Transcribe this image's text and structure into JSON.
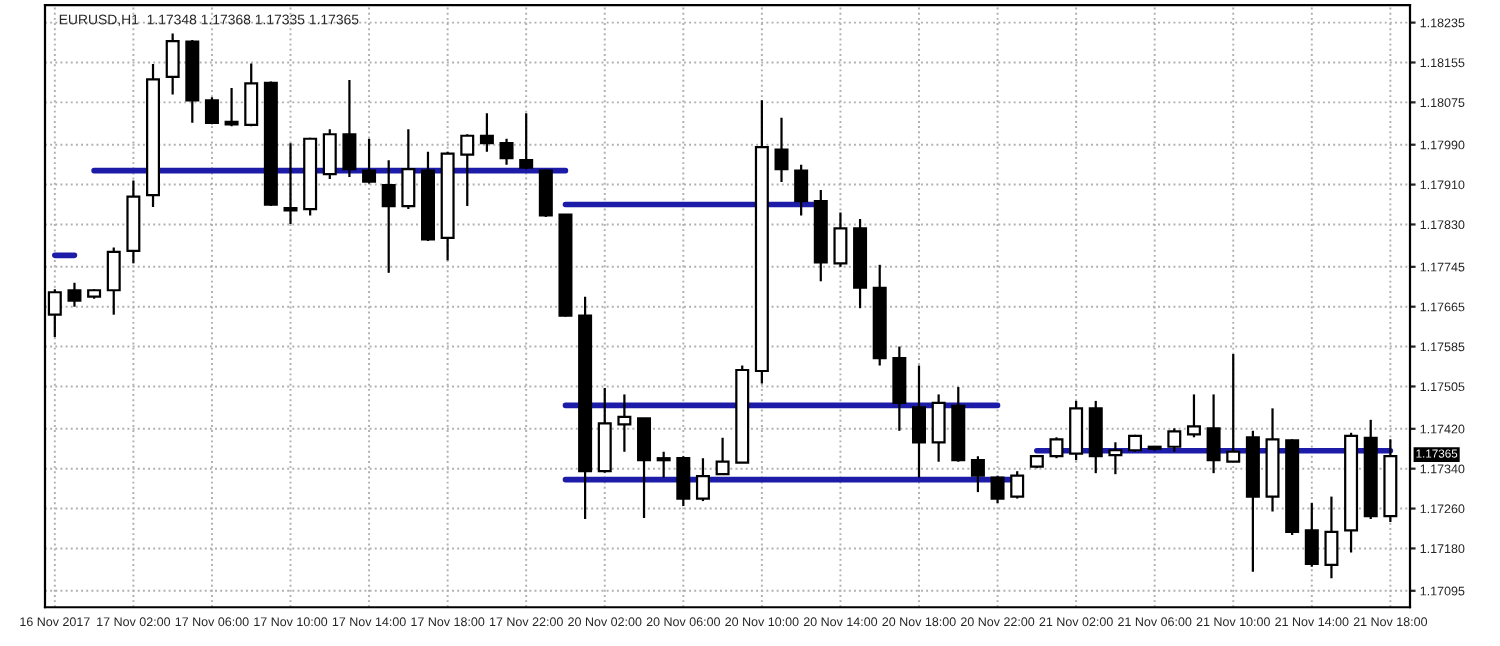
{
  "chart_data": {
    "type": "candlestick",
    "title": "EURUSD,H1  1.17348 1.17368 1.17335 1.17365",
    "categories": [
      "16 Nov 2017",
      null,
      null,
      null,
      "17 Nov 02:00",
      null,
      null,
      null,
      "17 Nov 06:00",
      null,
      null,
      null,
      "17 Nov 10:00",
      null,
      null,
      null,
      "17 Nov 14:00",
      null,
      null,
      null,
      "17 Nov 18:00",
      null,
      null,
      null,
      "17 Nov 22:00",
      null,
      null,
      null,
      "20 Nov 02:00",
      null,
      null,
      null,
      "20 Nov 06:00",
      null,
      null,
      null,
      "20 Nov 10:00",
      null,
      null,
      null,
      "20 Nov 14:00",
      null,
      null,
      null,
      "20 Nov 18:00",
      null,
      null,
      null,
      "20 Nov 22:00",
      null,
      null,
      null,
      "21 Nov 02:00",
      null,
      null,
      null,
      "21 Nov 06:00",
      null,
      null,
      null,
      "21 Nov 10:00",
      null,
      null,
      null,
      "21 Nov 14:00",
      null,
      null,
      null,
      "21 Nov 18:00"
    ],
    "ohlc": [
      [
        1.17649,
        1.177,
        1.17604,
        1.17694
      ],
      [
        1.17698,
        1.17713,
        1.17665,
        1.17677
      ],
      [
        1.17685,
        1.177,
        1.17681,
        1.17698
      ],
      [
        1.17698,
        1.17784,
        1.17649,
        1.17775
      ],
      [
        1.17777,
        1.17918,
        1.17752,
        1.17886
      ],
      [
        1.17889,
        1.18152,
        1.17865,
        1.18121
      ],
      [
        1.18126,
        1.18213,
        1.18091,
        1.18198
      ],
      [
        1.18197,
        1.182,
        1.18034,
        1.18079
      ],
      [
        1.18079,
        1.18085,
        1.18031,
        1.18034
      ],
      [
        1.18036,
        1.18104,
        1.18027,
        1.18031
      ],
      [
        1.1803,
        1.18153,
        1.18027,
        1.18113
      ],
      [
        1.18114,
        1.18117,
        1.17867,
        1.1787
      ],
      [
        1.17863,
        1.17993,
        1.17831,
        1.17858
      ],
      [
        1.17861,
        1.18004,
        1.17848,
        1.18002
      ],
      [
        1.17931,
        1.18021,
        1.17921,
        1.18011
      ],
      [
        1.18011,
        1.1812,
        1.17925,
        1.17941
      ],
      [
        1.17938,
        1.18002,
        1.17912,
        1.17916
      ],
      [
        1.17909,
        1.17959,
        1.17733,
        1.17867
      ],
      [
        1.17867,
        1.18021,
        1.17861,
        1.17941
      ],
      [
        1.17938,
        1.17976,
        1.17797,
        1.178
      ],
      [
        1.17803,
        1.17976,
        1.17758,
        1.17972
      ],
      [
        1.1797,
        1.18011,
        1.17867,
        1.18008
      ],
      [
        1.18008,
        1.18053,
        1.17976,
        1.17993
      ],
      [
        1.17993,
        1.18002,
        1.1795,
        1.17963
      ],
      [
        1.17959,
        1.18053,
        1.17941,
        1.17944
      ],
      [
        1.17938,
        1.1794,
        1.17845,
        1.17848
      ],
      [
        1.1785,
        1.1785,
        1.17645,
        1.17647
      ],
      [
        1.17647,
        1.17685,
        1.17239,
        1.17335
      ],
      [
        1.17335,
        1.17502,
        1.17332,
        1.17431
      ],
      [
        1.17429,
        1.17489,
        1.17374,
        1.17444
      ],
      [
        1.17441,
        1.17441,
        1.17241,
        1.17357
      ],
      [
        1.17357,
        1.17374,
        1.17322,
        1.17361
      ],
      [
        1.17361,
        1.17365,
        1.17265,
        1.1728
      ],
      [
        1.1728,
        1.17361,
        1.17275,
        1.17325
      ],
      [
        1.17329,
        1.17402,
        1.17329,
        1.17354
      ],
      [
        1.17352,
        1.17547,
        1.17352,
        1.17538
      ],
      [
        1.17536,
        1.18079,
        1.17511,
        1.17985
      ],
      [
        1.1798,
        1.18044,
        1.17915,
        1.17941
      ],
      [
        1.17938,
        1.1795,
        1.17848,
        1.17877
      ],
      [
        1.17877,
        1.17899,
        1.17716,
        1.17754
      ],
      [
        1.17752,
        1.17854,
        1.17745,
        1.17822
      ],
      [
        1.17822,
        1.17841,
        1.17662,
        1.17703
      ],
      [
        1.17703,
        1.17749,
        1.17547,
        1.17562
      ],
      [
        1.17562,
        1.17585,
        1.17416,
        1.17472
      ],
      [
        1.17463,
        1.17547,
        1.17322,
        1.17393
      ],
      [
        1.17393,
        1.17489,
        1.17354,
        1.17472
      ],
      [
        1.17466,
        1.17504,
        1.17354,
        1.17357
      ],
      [
        1.17357,
        1.17365,
        1.17293,
        1.17326
      ],
      [
        1.17322,
        1.17326,
        1.17271,
        1.1728
      ],
      [
        1.17284,
        1.17335,
        1.1728,
        1.17326
      ],
      [
        1.17344,
        1.17367,
        1.17341,
        1.17365
      ],
      [
        1.17365,
        1.17403,
        1.17361,
        1.17399
      ],
      [
        1.1737,
        1.17476,
        1.17357,
        1.17461
      ],
      [
        1.17461,
        1.17476,
        1.17331,
        1.17365
      ],
      [
        1.17367,
        1.17393,
        1.17329,
        1.17377
      ],
      [
        1.17377,
        1.17408,
        1.17374,
        1.17406
      ],
      [
        1.1738,
        1.17384,
        1.17376,
        1.17384
      ],
      [
        1.17384,
        1.17421,
        1.17374,
        1.17415
      ],
      [
        1.17409,
        1.17489,
        1.17403,
        1.17425
      ],
      [
        1.17421,
        1.17489,
        1.17331,
        1.17357
      ],
      [
        1.17354,
        1.1757,
        1.17354,
        1.17374
      ],
      [
        1.17403,
        1.17416,
        1.17133,
        1.17284
      ],
      [
        1.17284,
        1.17461,
        1.17254,
        1.17399
      ],
      [
        1.17397,
        1.17399,
        1.17207,
        1.17213
      ],
      [
        1.17216,
        1.17271,
        1.17143,
        1.17149
      ],
      [
        1.17147,
        1.17284,
        1.1712,
        1.17213
      ],
      [
        1.17216,
        1.17412,
        1.17172,
        1.17406
      ],
      [
        1.17402,
        1.17438,
        1.17239,
        1.17245
      ],
      [
        1.17245,
        1.17399,
        1.17233,
        1.17365
      ]
    ],
    "series": [
      {
        "type": "line",
        "color": "#1c1ca8",
        "values": [
          1.17768,
          1.17768,
          null,
          null,
          null,
          null,
          null,
          null,
          null,
          null,
          null,
          null,
          null,
          null,
          null,
          null,
          null,
          null,
          null,
          null,
          null,
          null,
          null,
          null,
          null,
          null,
          null,
          null,
          null,
          null,
          null,
          null,
          null,
          null,
          null,
          null,
          null,
          null,
          null,
          null,
          null,
          null,
          null,
          null,
          null,
          null,
          null,
          null,
          null,
          null,
          null,
          null,
          null,
          null,
          null,
          null,
          null,
          null,
          null,
          null,
          null,
          null,
          null,
          null,
          null,
          null,
          null,
          null,
          null
        ]
      },
      {
        "type": "line",
        "color": "#1c1ca8",
        "values": [
          null,
          null,
          1.17938,
          1.17938,
          1.17938,
          1.17938,
          1.17938,
          1.17938,
          1.17938,
          1.17938,
          1.17938,
          1.17938,
          1.17938,
          1.17938,
          1.17938,
          1.17938,
          1.17938,
          1.17938,
          1.17938,
          1.17938,
          1.17938,
          1.17938,
          1.17938,
          1.17938,
          1.17938,
          1.17938,
          1.17938,
          null,
          null,
          null,
          null,
          null,
          null,
          null,
          null,
          null,
          null,
          null,
          null,
          null,
          null,
          null,
          null,
          null,
          null,
          null,
          null,
          null,
          null,
          null,
          null,
          null,
          null,
          null,
          null,
          null,
          null,
          null,
          null,
          null,
          null,
          null,
          null,
          null,
          null,
          null,
          null,
          null,
          null
        ]
      },
      {
        "type": "line",
        "color": "#1c1ca8",
        "values": [
          null,
          null,
          null,
          null,
          null,
          null,
          null,
          null,
          null,
          null,
          null,
          null,
          null,
          null,
          null,
          null,
          null,
          null,
          null,
          null,
          null,
          null,
          null,
          null,
          null,
          null,
          1.1787,
          1.1787,
          1.1787,
          1.1787,
          1.1787,
          1.1787,
          1.1787,
          1.1787,
          1.1787,
          1.1787,
          1.1787,
          1.1787,
          1.1787,
          1.1787,
          null,
          null,
          null,
          null,
          null,
          null,
          null,
          null,
          null,
          null,
          null,
          null,
          null,
          null,
          null,
          null,
          null,
          null,
          null,
          null,
          null,
          null,
          null,
          null,
          null,
          null,
          null,
          null,
          null
        ]
      },
      {
        "type": "line",
        "color": "#1c1ca8",
        "values": [
          null,
          null,
          null,
          null,
          null,
          null,
          null,
          null,
          null,
          null,
          null,
          null,
          null,
          null,
          null,
          null,
          null,
          null,
          null,
          null,
          null,
          null,
          null,
          null,
          null,
          null,
          1.17467,
          1.17467,
          1.17467,
          1.17467,
          1.17467,
          1.17467,
          1.17467,
          1.17467,
          1.17467,
          1.17467,
          1.17467,
          1.17467,
          1.17467,
          1.17467,
          1.17467,
          1.17467,
          1.17467,
          1.17467,
          1.17467,
          1.17467,
          1.17467,
          1.17467,
          1.17467,
          null,
          null,
          null,
          null,
          null,
          null,
          null,
          null,
          null,
          null,
          null,
          null,
          null,
          null,
          null,
          null,
          null,
          null,
          null,
          null
        ]
      },
      {
        "type": "line",
        "color": "#1c1ca8",
        "values": [
          null,
          null,
          null,
          null,
          null,
          null,
          null,
          null,
          null,
          null,
          null,
          null,
          null,
          null,
          null,
          null,
          null,
          null,
          null,
          null,
          null,
          null,
          null,
          null,
          null,
          null,
          1.17318,
          1.17318,
          1.17318,
          1.17318,
          1.17318,
          1.17318,
          1.17318,
          1.17318,
          1.17318,
          1.17318,
          1.17318,
          1.17318,
          1.17318,
          1.17318,
          1.17318,
          1.17318,
          1.17318,
          1.17318,
          1.17318,
          1.17318,
          1.17318,
          1.17318,
          1.17318,
          1.17318,
          null,
          null,
          null,
          null,
          null,
          null,
          null,
          null,
          null,
          null,
          null,
          null,
          null,
          null,
          null,
          null,
          null,
          null,
          null
        ]
      },
      {
        "type": "line",
        "color": "#1c1ca8",
        "values": [
          null,
          null,
          null,
          null,
          null,
          null,
          null,
          null,
          null,
          null,
          null,
          null,
          null,
          null,
          null,
          null,
          null,
          null,
          null,
          null,
          null,
          null,
          null,
          null,
          null,
          null,
          null,
          null,
          null,
          null,
          null,
          null,
          null,
          null,
          null,
          null,
          null,
          null,
          null,
          null,
          null,
          null,
          null,
          null,
          null,
          null,
          null,
          null,
          null,
          null,
          1.17376,
          1.17376,
          1.17376,
          1.17376,
          1.17376,
          1.17376,
          1.17376,
          1.17376,
          1.17376,
          1.17376,
          1.17376,
          1.17376,
          1.17376,
          1.17376,
          1.17376,
          1.17376,
          1.17376,
          1.17376,
          1.17376
        ]
      }
    ],
    "ylim": [
      1.17062,
      1.1827
    ],
    "yticks": [
      {
        "value": 1.18235,
        "label": "1.18235"
      },
      {
        "value": 1.18155,
        "label": "1.18155"
      },
      {
        "value": 1.18075,
        "label": "1.18075"
      },
      {
        "value": 1.1799,
        "label": "1.17990"
      },
      {
        "value": 1.1791,
        "label": "1.17910"
      },
      {
        "value": 1.1783,
        "label": "1.17830"
      },
      {
        "value": 1.17745,
        "label": "1.17745"
      },
      {
        "value": 1.17665,
        "label": "1.17665"
      },
      {
        "value": 1.17585,
        "label": "1.17585"
      },
      {
        "value": 1.17505,
        "label": "1.17505"
      },
      {
        "value": 1.1742,
        "label": "1.17420"
      },
      {
        "value": 1.1734,
        "label": "1.17340"
      },
      {
        "value": 1.1726,
        "label": "1.17260"
      },
      {
        "value": 1.1718,
        "label": "1.17180"
      },
      {
        "value": 1.17095,
        "label": "1.17095"
      }
    ],
    "annotations": [
      "1.17365"
    ],
    "grid": true,
    "line_style": "solid",
    "marker": "none"
  }
}
